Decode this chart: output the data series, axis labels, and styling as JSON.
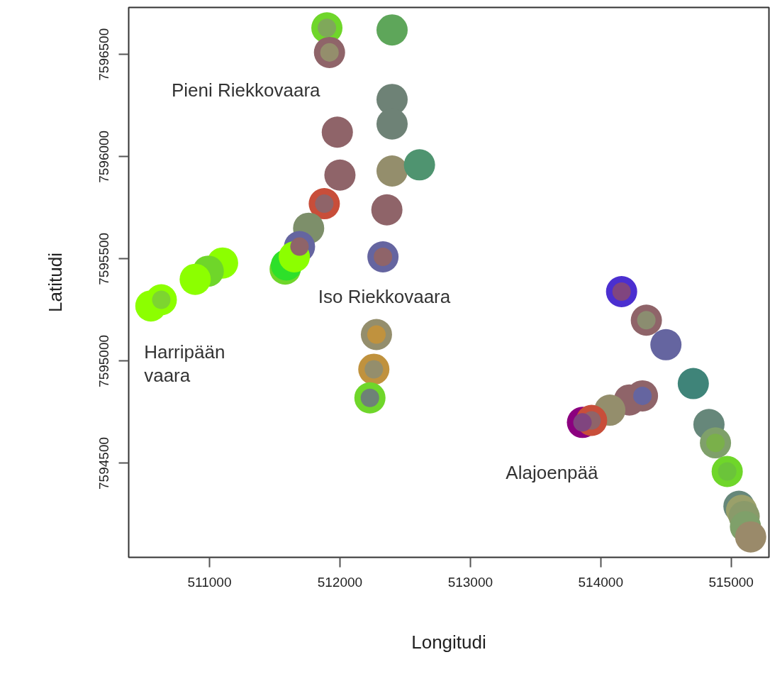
{
  "chart_data": {
    "type": "bubble",
    "xlabel": "Longitudi",
    "ylabel": "Latitudi",
    "xlim": [
      510380,
      515290
    ],
    "ylim": [
      7594040,
      7596730
    ],
    "xticks": [
      511000,
      512000,
      513000,
      514000,
      515000
    ],
    "yticks": [
      7594500,
      7595000,
      7595500,
      7596000,
      7596500
    ],
    "grid": false,
    "marker": "circle",
    "series": [
      {
        "x": [
          511900,
          512400,
          511920,
          512400,
          512400,
          511980,
          512000,
          512400,
          512610,
          511880,
          512360,
          511760,
          511690,
          512330,
          511100,
          510990,
          510890,
          510630,
          510550,
          511580,
          511590,
          511650,
          512280,
          512260,
          512230,
          514160,
          514350,
          514500,
          514710,
          514320,
          514220,
          514070,
          513860,
          513930,
          514830,
          514880,
          514970,
          515060,
          515080,
          515100,
          515110,
          515150
        ],
        "values": [
          7596630,
          7596620,
          7596510,
          7596280,
          7596160,
          7596120,
          7595910,
          7595930,
          7595960,
          7595770,
          7595740,
          7595650,
          7595560,
          7595510,
          7595480,
          7595440,
          7595400,
          7595300,
          7595270,
          7595450,
          7595470,
          7595510,
          7595130,
          7594960,
          7594820,
          7595340,
          7595200,
          7595080,
          7594890,
          7594830,
          7594810,
          7594760,
          7594700,
          7594710,
          7594690,
          7594600,
          7594460,
          7594290,
          7594270,
          7594240,
          7594190,
          7594140
        ],
        "sizes": [
          1,
          1,
          1,
          1,
          1,
          1,
          1,
          1,
          1,
          1,
          1,
          1,
          1,
          1,
          1,
          1,
          1,
          1,
          1,
          1,
          1,
          1,
          1,
          1,
          1,
          1,
          1,
          1,
          1,
          1,
          1,
          1,
          1,
          1,
          1,
          1,
          1,
          1,
          1,
          1,
          1,
          1
        ],
        "colors": [
          "#6fd62a",
          "#5ea65a",
          "#8f6469",
          "#6e8276",
          "#6e8276",
          "#8f6469",
          "#8f6469",
          "#948e6c",
          "#4f9470",
          "#c84e3a",
          "#8f6469",
          "#7d8f6a",
          "#6565a0",
          "#6565a0",
          "#8cff00",
          "#6fd62a",
          "#8cff00",
          "#8cff00",
          "#8cff00",
          "#6fd62a",
          "#2ee02a",
          "#8cff00",
          "#948e6c",
          "#c0923e",
          "#6fd62a",
          "#4b2fd0",
          "#8f6469",
          "#6565a0",
          "#3f8479",
          "#8f6469",
          "#8f6469",
          "#948e6c",
          "#8b007f",
          "#c84e3a",
          "#66877a",
          "#7fa06a",
          "#6fd62a",
          "#66877a",
          "#9aa06a",
          "#8a9a6a",
          "#7fa06a",
          "#9a8a6a"
        ]
      },
      {
        "x": [
          511900,
          511920,
          511880,
          511690,
          512330,
          510630,
          512280,
          512260,
          512230,
          514160,
          514350,
          514320,
          513930,
          513860,
          514880,
          514970
        ],
        "values": [
          7596630,
          7596510,
          7595770,
          7595560,
          7595510,
          7595300,
          7595130,
          7594960,
          7594820,
          7595340,
          7595200,
          7594830,
          7594710,
          7594700,
          7594600,
          7594460
        ],
        "sizes": [
          0.35,
          0.35,
          0.35,
          0.35,
          0.35,
          0.35,
          0.35,
          0.35,
          0.35,
          0.35,
          0.35,
          0.35,
          0.35,
          0.35,
          0.35,
          0.35
        ],
        "colors": [
          "#7fa85a",
          "#948e6c",
          "#8f6469",
          "#8f6469",
          "#8f6469",
          "#7dd530",
          "#c0923e",
          "#948e6c",
          "#6e8276",
          "#80457f",
          "#8b8d70",
          "#6565a0",
          "#8f6469",
          "#80457f",
          "#7ab04a",
          "#6bc43a"
        ]
      }
    ],
    "annotations": [
      "Pieni Riekkovaara",
      "Iso Riekkovaara",
      "Harripään\nvaara",
      "Alajoenpää"
    ]
  }
}
